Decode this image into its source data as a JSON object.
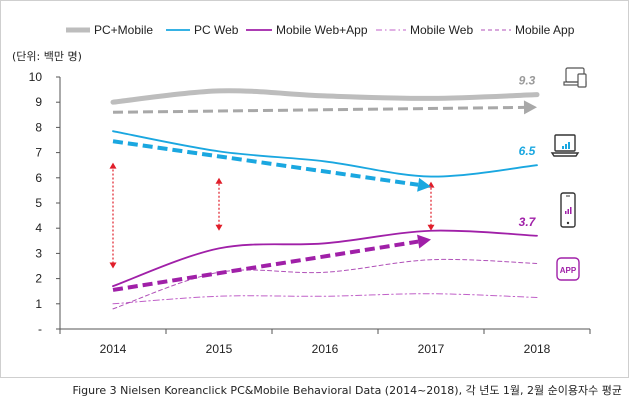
{
  "chart_data": {
    "type": "line",
    "unit_label": "(단위: 백만 명)",
    "x": [
      "2014",
      "2015",
      "2016",
      "2017",
      "2018"
    ],
    "y_ticks": [
      "-",
      "1",
      "2",
      "3",
      "4",
      "5",
      "6",
      "7",
      "8",
      "9",
      "10"
    ],
    "ylim": [
      0,
      10
    ],
    "grid": false,
    "legend_position": "top",
    "series": [
      {
        "name": "PC+Mobile",
        "values": [
          9.0,
          9.45,
          9.25,
          9.15,
          9.3
        ],
        "color": "#bdbdbd",
        "style": "solid-thick"
      },
      {
        "name": "PC Web",
        "values": [
          7.85,
          7.05,
          6.65,
          6.05,
          6.5
        ],
        "color": "#1aa7e0",
        "style": "solid"
      },
      {
        "name": "Mobile Web+App",
        "values": [
          1.7,
          3.2,
          3.4,
          3.9,
          3.7
        ],
        "color": "#a020a8",
        "style": "solid"
      },
      {
        "name": "Mobile Web",
        "values": [
          1.0,
          1.3,
          1.3,
          1.4,
          1.25
        ],
        "color": "#c060c8",
        "style": "dash-dot"
      },
      {
        "name": "Mobile App",
        "values": [
          0.8,
          2.25,
          2.25,
          2.75,
          2.6
        ],
        "color": "#b050b8",
        "style": "dashed"
      }
    ],
    "end_labels": [
      {
        "text": "9.3",
        "value": 9.3,
        "color": "#9a9a9a"
      },
      {
        "text": "6.5",
        "value": 6.5,
        "color": "#1aa7e0"
      },
      {
        "text": "3.7",
        "value": 3.7,
        "color": "#a020a8"
      }
    ],
    "trend_arrows": [
      {
        "from": [
          2014,
          8.6
        ],
        "to": [
          2018,
          8.8
        ],
        "color": "#a8a8a8"
      },
      {
        "from": [
          2014,
          7.45
        ],
        "to": [
          2017,
          5.65
        ],
        "color": "#1aa7e0"
      },
      {
        "from": [
          2014,
          1.55
        ],
        "to": [
          2017,
          3.55
        ],
        "color": "#a020a8"
      }
    ],
    "gap_arrows": [
      {
        "x": 2014,
        "from": 2.4,
        "to": 6.6
      },
      {
        "x": 2015,
        "from": 3.9,
        "to": 6.0
      },
      {
        "x": 2017,
        "from": 3.9,
        "to": 5.85
      }
    ],
    "device_icons": [
      "laptop-desktop-icon",
      "laptop-icon",
      "smartphone-icon",
      "app-icon"
    ],
    "app_icon_text": "APP"
  },
  "caption": "Figure 3 Nielsen Koreanclick PC&Mobile Behavioral Data (2014~2018), 각 년도 1월, 2월 순이용자수 평균"
}
